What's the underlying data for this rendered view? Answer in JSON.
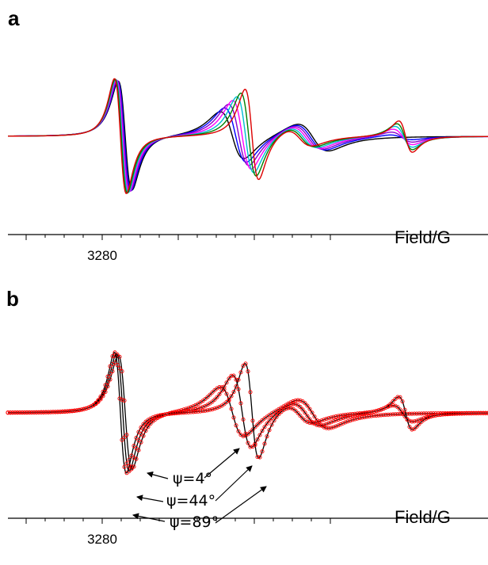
{
  "chart_data": [
    {
      "panel": "a",
      "type": "line",
      "xlabel": "Field/G",
      "xlim": [
        3270,
        3310
      ],
      "x_ticks": [
        3280,
        3300,
        3320
      ],
      "grid": false,
      "series": [
        {
          "color": "#000000",
          "mode": 0
        },
        {
          "color": "#0000ff",
          "mode": 0.17
        },
        {
          "color": "#8800cc",
          "mode": 0.33
        },
        {
          "color": "#ff00ff",
          "mode": 0.5
        },
        {
          "color": "#00bcd4",
          "mode": 0.67
        },
        {
          "color": "#008000",
          "mode": 0.83
        },
        {
          "color": "#dd0000",
          "mode": 1
        }
      ]
    },
    {
      "panel": "b",
      "type": "line",
      "xlabel": "Field/G",
      "xlim": [
        3270,
        3310
      ],
      "x_ticks": [
        3280,
        3300,
        3320
      ],
      "grid": false,
      "series": [
        {
          "color": "#000000",
          "marker_color": "#ff0000",
          "mode": 0,
          "label": "ψ=4°"
        },
        {
          "color": "#000000",
          "marker_color": "#ff0000",
          "mode": 0.5,
          "label": "ψ=44°"
        },
        {
          "color": "#000000",
          "marker_color": "#ff0000",
          "mode": 1,
          "label": "ψ=89°"
        }
      ]
    }
  ]
}
